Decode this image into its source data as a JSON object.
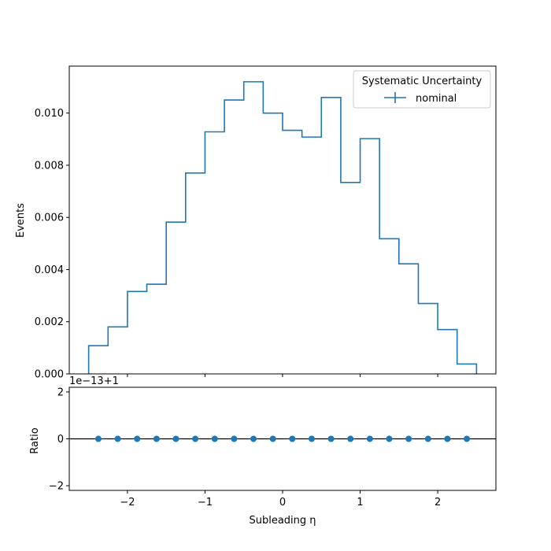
{
  "chart_data": [
    {
      "type": "step-histogram",
      "ylabel": "Events",
      "xlim": [
        -2.75,
        2.75
      ],
      "ylim": [
        0,
        0.0118
      ],
      "bin_edges": [
        -2.5,
        -2.25,
        -2.0,
        -1.75,
        -1.5,
        -1.25,
        -1.0,
        -0.75,
        -0.5,
        -0.25,
        0.0,
        0.25,
        0.5,
        0.75,
        1.0,
        1.25,
        1.5,
        1.75,
        2.0,
        2.25,
        2.5
      ],
      "series": [
        {
          "name": "nominal",
          "color": "#1f77b4",
          "values": [
            0.00108,
            0.0018,
            0.00316,
            0.00344,
            0.00582,
            0.0077,
            0.00928,
            0.0105,
            0.0112,
            0.01,
            0.00934,
            0.00908,
            0.0106,
            0.00734,
            0.00902,
            0.00518,
            0.00422,
            0.0027,
            0.0017,
            0.00038
          ]
        }
      ],
      "yticks": [
        0.0,
        0.002,
        0.004,
        0.006,
        0.008,
        0.01
      ],
      "ytick_labels": [
        "0.000",
        "0.002",
        "0.004",
        "0.006",
        "0.008",
        "0.010"
      ],
      "xticks": [
        -2,
        -1,
        0,
        1,
        2
      ],
      "legend": {
        "title": "Systematic Uncertainty",
        "entries": [
          "nominal"
        ],
        "placement": "top-right"
      }
    },
    {
      "type": "scatter",
      "xlabel": "Subleading η",
      "ylabel": "Ratio",
      "offset_text": "1e−13+1",
      "xlim": [
        -2.75,
        2.75
      ],
      "ylim": [
        -2.2,
        2.2
      ],
      "reference_line": 0,
      "x": [
        -2.375,
        -2.125,
        -1.875,
        -1.625,
        -1.375,
        -1.125,
        -0.875,
        -0.625,
        -0.375,
        -0.125,
        0.125,
        0.375,
        0.625,
        0.875,
        1.125,
        1.375,
        1.625,
        1.875,
        2.125,
        2.375
      ],
      "y": [
        0,
        0,
        0,
        0,
        0,
        0,
        0,
        0,
        0,
        0,
        0,
        0,
        0,
        0,
        0,
        0,
        0,
        0,
        0,
        0
      ],
      "color": "#1f77b4",
      "yticks": [
        -2,
        0,
        2
      ],
      "xticks": [
        -2,
        -1,
        0,
        1,
        2
      ],
      "xtick_labels": [
        "−2",
        "−1",
        "0",
        "1",
        "2"
      ],
      "ytick_labels": [
        "−2",
        "0",
        "2"
      ]
    }
  ]
}
